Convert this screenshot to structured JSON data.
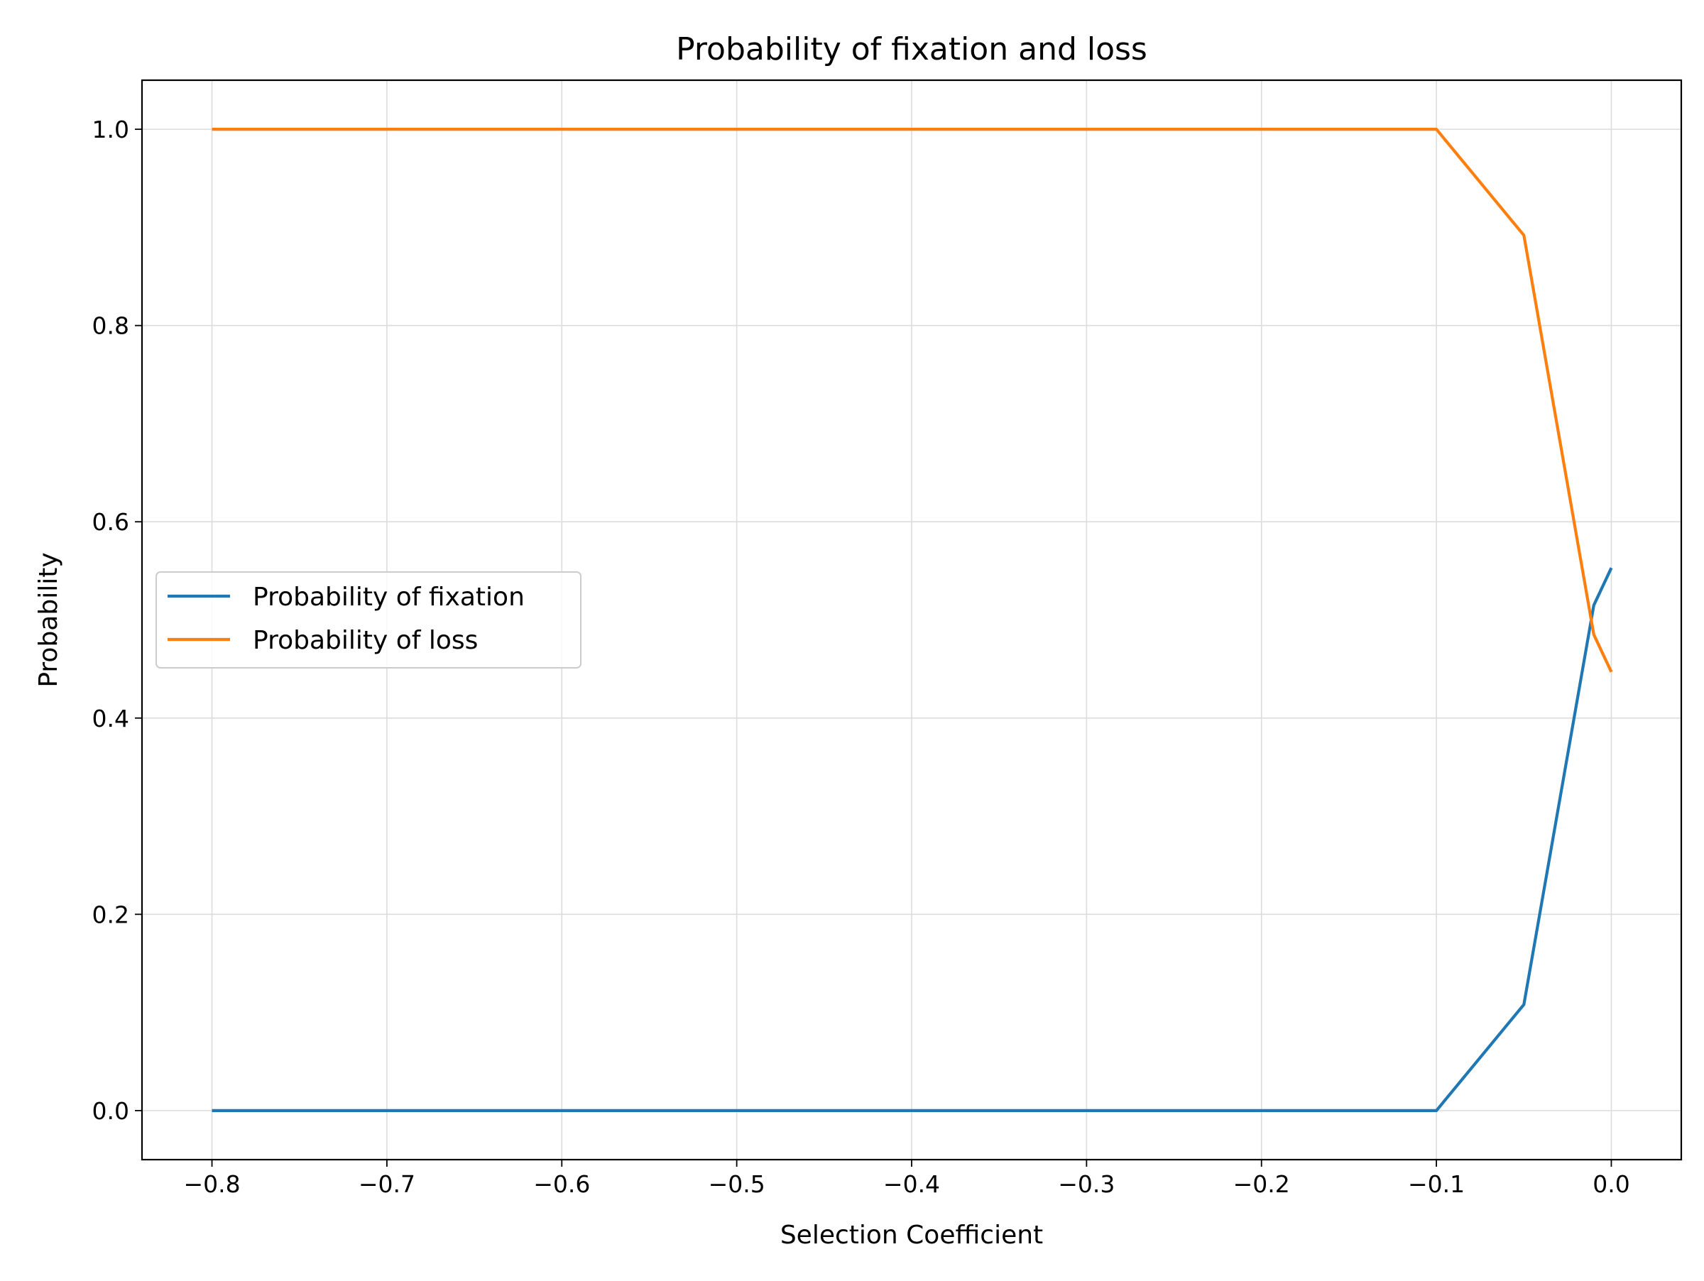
{
  "chart_data": {
    "type": "line",
    "title": "Probability of fixation and loss",
    "xlabel": "Selection Coefficient",
    "ylabel": "Probability",
    "xlim": [
      -0.84,
      0.04
    ],
    "ylim": [
      -0.05,
      1.05
    ],
    "xticks": [
      {
        "value": -0.8,
        "label": "−0.8"
      },
      {
        "value": -0.7,
        "label": "−0.7"
      },
      {
        "value": -0.6,
        "label": "−0.6"
      },
      {
        "value": -0.5,
        "label": "−0.5"
      },
      {
        "value": -0.4,
        "label": "−0.4"
      },
      {
        "value": -0.3,
        "label": "−0.3"
      },
      {
        "value": -0.2,
        "label": "−0.2"
      },
      {
        "value": -0.1,
        "label": "−0.1"
      },
      {
        "value": 0.0,
        "label": "0.0"
      }
    ],
    "yticks": [
      {
        "value": 0.0,
        "label": "0.0"
      },
      {
        "value": 0.2,
        "label": "0.2"
      },
      {
        "value": 0.4,
        "label": "0.4"
      },
      {
        "value": 0.6,
        "label": "0.6"
      },
      {
        "value": 0.8,
        "label": "0.8"
      },
      {
        "value": 1.0,
        "label": "1.0"
      }
    ],
    "grid": true,
    "legend_position": "center-left",
    "series": [
      {
        "name": "Probability of fixation",
        "color": "#1f77b4",
        "x": [
          -0.8,
          -0.1,
          -0.05,
          -0.01,
          0.0
        ],
        "y": [
          0.0,
          0.0,
          0.108,
          0.515,
          0.553
        ]
      },
      {
        "name": "Probability of loss",
        "color": "#ff7f0e",
        "x": [
          -0.8,
          -0.1,
          -0.05,
          -0.01,
          0.0
        ],
        "y": [
          1.0,
          1.0,
          0.892,
          0.485,
          0.447
        ]
      }
    ]
  }
}
